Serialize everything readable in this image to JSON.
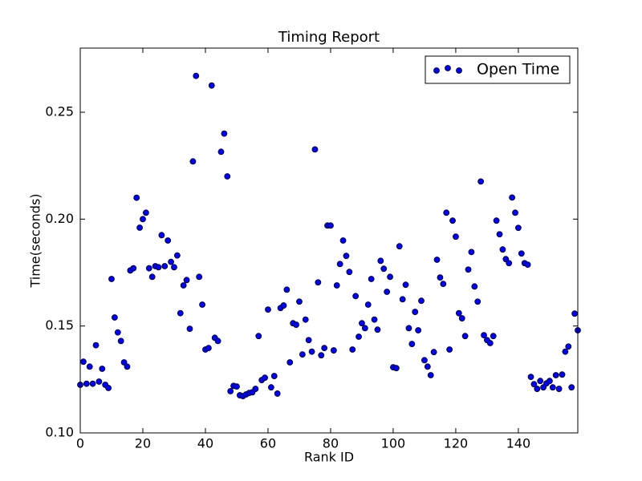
{
  "chart_data": {
    "type": "scatter",
    "title": "Timing Report",
    "x_label": "Rank ID",
    "y_label": "Time(seconds)",
    "x": [
      0,
      1,
      2,
      3,
      4,
      5,
      6,
      7,
      8,
      9,
      10,
      11,
      12,
      13,
      14,
      15,
      16,
      17,
      18,
      19,
      20,
      21,
      22,
      23,
      24,
      25,
      26,
      27,
      28,
      29,
      30,
      31,
      32,
      33,
      34,
      35,
      36,
      37,
      38,
      39,
      40,
      41,
      42,
      43,
      44,
      45,
      46,
      47,
      48,
      49,
      50,
      51,
      52,
      53,
      54,
      55,
      56,
      57,
      58,
      59,
      60,
      61,
      62,
      63,
      64,
      65,
      66,
      67,
      68,
      69,
      70,
      71,
      72,
      73,
      74,
      75,
      76,
      77,
      78,
      79,
      80,
      81,
      82,
      83,
      84,
      85,
      86,
      87,
      88,
      89,
      90,
      91,
      92,
      93,
      94,
      95,
      96,
      97,
      98,
      99,
      100,
      101,
      102,
      103,
      104,
      105,
      106,
      107,
      108,
      109,
      110,
      111,
      112,
      113,
      114,
      115,
      116,
      117,
      118,
      119,
      120,
      121,
      122,
      123,
      124,
      125,
      126,
      127,
      128,
      129,
      130,
      131,
      132,
      133,
      134,
      135,
      136,
      137,
      138,
      139,
      140,
      141,
      142,
      143,
      144,
      145,
      146,
      147,
      148,
      149,
      150,
      151,
      152,
      153,
      154,
      155,
      156,
      157,
      158,
      159
    ],
    "series": [
      {
        "name": "Open Time",
        "color": "#0000ff",
        "edge_color": "#000000",
        "values": [
          0.1225,
          0.1333,
          0.123,
          0.131,
          0.123,
          0.141,
          0.124,
          0.13,
          0.1225,
          0.121,
          0.172,
          0.154,
          0.147,
          0.143,
          0.133,
          0.131,
          0.176,
          0.177,
          0.21,
          0.196,
          0.2,
          0.203,
          0.177,
          0.173,
          0.178,
          0.1775,
          0.1925,
          0.178,
          0.19,
          0.18,
          0.1775,
          0.183,
          0.156,
          0.169,
          0.1715,
          0.1487,
          0.227,
          0.267,
          0.173,
          0.16,
          0.139,
          0.1397,
          0.2625,
          0.1445,
          0.143,
          0.2315,
          0.24,
          0.22,
          0.1195,
          0.122,
          0.1217,
          0.1176,
          0.1172,
          0.118,
          0.1187,
          0.119,
          0.1206,
          0.1453,
          0.1247,
          0.1258,
          0.1577,
          0.1213,
          0.1266,
          0.1184,
          0.1584,
          0.1596,
          0.167,
          0.133,
          0.1513,
          0.1506,
          0.1614,
          0.1367,
          0.153,
          0.1434,
          0.138,
          0.2326,
          0.1704,
          0.1363,
          0.1397,
          0.197,
          0.197,
          0.1386,
          0.169,
          0.179,
          0.19,
          0.1828,
          0.1753,
          0.139,
          0.164,
          0.145,
          0.1513,
          0.149,
          0.16,
          0.172,
          0.153,
          0.1483,
          0.1805,
          0.1768,
          0.166,
          0.173,
          0.1307,
          0.1303,
          0.1873,
          0.1625,
          0.1693,
          0.149,
          0.1416,
          0.1566,
          0.148,
          0.1618,
          0.134,
          0.131,
          0.127,
          0.1378,
          0.181,
          0.1727,
          0.1697,
          0.203,
          0.139,
          0.1993,
          0.1918,
          0.156,
          0.1536,
          0.1453,
          0.1764,
          0.1846,
          0.1685,
          0.1614,
          0.2176,
          0.1457,
          0.1434,
          0.142,
          0.1453,
          0.1993,
          0.1929,
          0.1858,
          0.1813,
          0.1794,
          0.2101,
          0.203,
          0.1959,
          0.1839,
          0.1794,
          0.1787,
          0.1262,
          0.1228,
          0.1206,
          0.1243,
          0.1213,
          0.1232,
          0.1243,
          0.1213,
          0.127,
          0.1206,
          0.1273,
          0.138,
          0.1404,
          0.1213,
          0.1558,
          0.148
        ]
      }
    ],
    "xlim": [
      0,
      159
    ],
    "ylim": [
      0.1,
      0.28
    ],
    "xticks": [
      0,
      20,
      40,
      60,
      80,
      100,
      120,
      140
    ],
    "yticks": [
      {
        "value": 0.1,
        "label": "0.10"
      },
      0.15,
      {
        "value": 0.2,
        "label": "0.20"
      },
      0.25
    ],
    "grid": false,
    "legend": "upper right"
  }
}
